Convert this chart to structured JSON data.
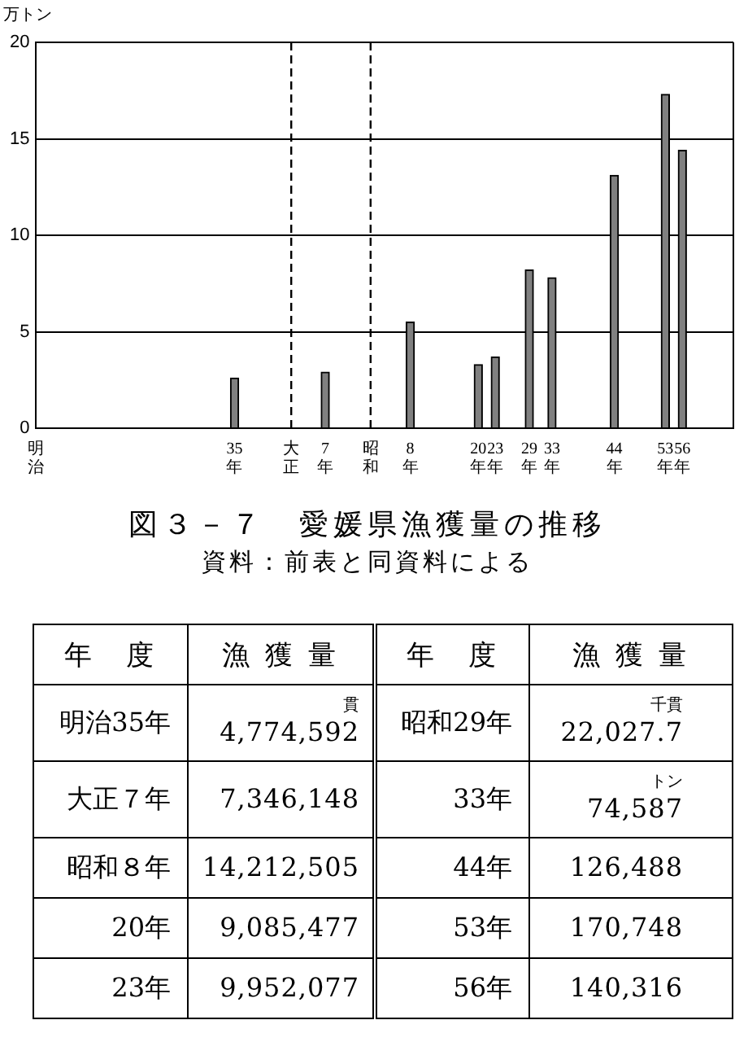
{
  "chart_data": [
    {
      "type": "bar",
      "title": "図３－７　愛媛県漁獲量の推移",
      "subtitle": "資料：前表と同資料による",
      "ylabel": "万トン",
      "x": [
        "1902",
        "1918",
        "1933",
        "1945",
        "1948",
        "1954",
        "1958",
        "1969",
        "1978",
        "1981"
      ],
      "values": [
        2.6,
        2.9,
        5.5,
        3.3,
        3.7,
        8.2,
        7.8,
        13.1,
        17.3,
        14.4
      ],
      "color": "#808080",
      "xlim": [
        "1867",
        "1990"
      ],
      "xticks": [
        {
          "value": "1867",
          "label": "明治"
        },
        {
          "value": "1902",
          "label": "35年"
        },
        {
          "value": "1912",
          "label": "大正"
        },
        {
          "value": "1918",
          "label": "7年"
        },
        {
          "value": "1926",
          "label": "昭和"
        },
        {
          "value": "1933",
          "label": "8年"
        },
        {
          "value": "1945",
          "label": "20年"
        },
        {
          "value": "1948",
          "label": "23年"
        },
        {
          "value": "1954",
          "label": "29年"
        },
        {
          "value": "1958",
          "label": "33年"
        },
        {
          "value": "1969",
          "label": "44年"
        },
        {
          "value": "1978",
          "label": "53年"
        },
        {
          "value": "1981",
          "label": "56年"
        }
      ],
      "ylim": [
        0,
        20
      ],
      "yticks": [
        0,
        5,
        10,
        15,
        20
      ],
      "grid": "y",
      "ref_lines": [
        {
          "axis": "x",
          "value": "1912",
          "line_style": "dashed",
          "color": "#000000"
        },
        {
          "axis": "x",
          "value": "1926",
          "line_style": "dashed",
          "color": "#000000"
        }
      ]
    },
    {
      "type": "other",
      "xlabel": "年　度",
      "ylabel": "漁 獲 量",
      "categories": [
        "明治35年",
        "大正７年",
        "昭和８年",
        "20年",
        "23年",
        "昭和29年",
        "33年",
        "44年",
        "53年",
        "56年"
      ],
      "value_labels": [
        "4,774,592",
        "7,346,148",
        "14,212,505",
        "9,085,477",
        "9,952,077",
        "22,027.7",
        "74,587",
        "126,488",
        "170,748",
        "140,316"
      ],
      "annotations": [
        {
          "text": "貫",
          "x": "明治35年"
        },
        {
          "text": "千貫",
          "x": "昭和29年"
        },
        {
          "text": "トン",
          "x": "33年"
        }
      ]
    }
  ]
}
